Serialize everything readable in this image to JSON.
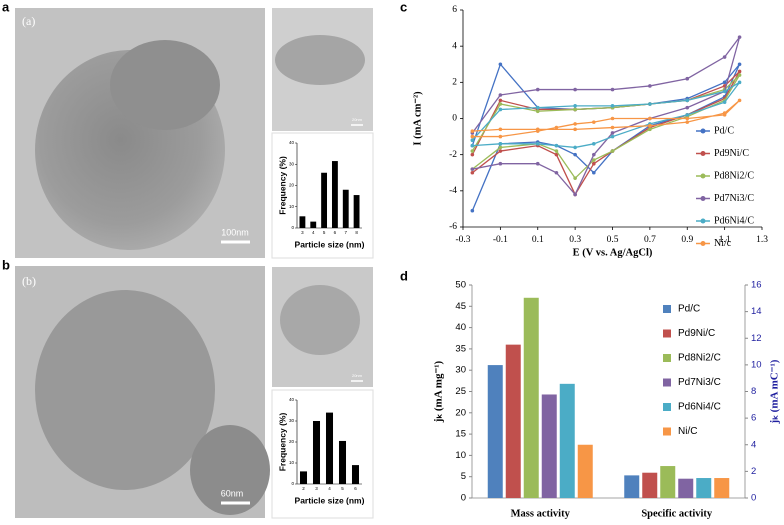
{
  "panels": [
    {
      "label": "a",
      "tag": "(a)",
      "scale_bar": "100nm",
      "inset_scale_bar": "20nm"
    },
    {
      "label": "b",
      "tag": "(b)",
      "scale_bar": "60nm",
      "inset_scale_bar": "20nm"
    }
  ],
  "chart_data": [
    {
      "type": "bar",
      "xlabel": "Particle size  (nm)",
      "ylabel": "Frequency (%)",
      "categories": [
        "3",
        "4",
        "5",
        "6",
        "7",
        "8"
      ],
      "values": [
        5.5,
        3,
        26,
        31.5,
        18,
        15.5
      ],
      "color": "#000000",
      "ylim": [
        0,
        40
      ],
      "yticks": [
        0,
        10,
        20,
        30,
        40
      ]
    },
    {
      "type": "bar",
      "xlabel": "Particle size  (nm)",
      "ylabel": "Frequency (%)",
      "categories": [
        "2",
        "3",
        "4",
        "5",
        "6"
      ],
      "values": [
        6,
        30,
        34,
        20.5,
        9
      ],
      "color": "#000000",
      "ylim": [
        0,
        40
      ],
      "yticks": [
        0,
        10,
        20,
        30,
        40
      ]
    },
    {
      "type": "line",
      "panel_label": "c",
      "xlabel": "E (V vs. Ag/AgCl)",
      "ylabel": "I (mA cm⁻²)",
      "xlim": [
        -0.3,
        1.3
      ],
      "xticks": [
        -0.3,
        -0.1,
        0.1,
        0.3,
        0.5,
        0.7,
        0.9,
        1.1,
        1.3
      ],
      "ylim": [
        -6,
        6
      ],
      "yticks": [
        -6,
        -4,
        -2,
        0,
        2,
        4,
        6
      ],
      "legend": "right",
      "series": [
        {
          "name": "Pd/C",
          "color": "#4472c4",
          "x": [
            -0.25,
            -0.1,
            0.1,
            0.3,
            0.5,
            0.7,
            0.9,
            1.1,
            1.18,
            1.1,
            0.9,
            0.7,
            0.5,
            0.4,
            0.3,
            0.2,
            0.1,
            -0.1,
            -0.25
          ],
          "values": [
            -1.5,
            3.0,
            0.6,
            0.5,
            0.6,
            0.8,
            1.1,
            2.0,
            3.0,
            1.2,
            0.2,
            -0.4,
            -1.8,
            -3.0,
            -2.0,
            -1.5,
            -1.3,
            -1.4,
            -5.1
          ]
        },
        {
          "name": "Pd9Ni/C",
          "color": "#c0504d",
          "x": [
            -0.25,
            -0.1,
            0.1,
            0.3,
            0.5,
            0.7,
            0.9,
            1.1,
            1.18,
            1.1,
            0.9,
            0.7,
            0.5,
            0.4,
            0.3,
            0.2,
            0.1,
            -0.1,
            -0.25
          ],
          "values": [
            -2.0,
            1.0,
            0.5,
            0.5,
            0.6,
            0.8,
            1.0,
            1.8,
            2.6,
            1.1,
            0.2,
            -0.5,
            -1.8,
            -2.5,
            -4.2,
            -2.0,
            -1.5,
            -1.8,
            -3.0
          ]
        },
        {
          "name": "Pd8Ni2/C",
          "color": "#9bbb59",
          "x": [
            -0.25,
            -0.1,
            0.1,
            0.3,
            0.5,
            0.7,
            0.9,
            1.1,
            1.18,
            1.1,
            0.9,
            0.7,
            0.5,
            0.4,
            0.3,
            0.2,
            0.1,
            -0.1,
            -0.25
          ],
          "values": [
            -1.8,
            0.8,
            0.4,
            0.5,
            0.6,
            0.8,
            1.0,
            1.6,
            2.4,
            1.0,
            0.1,
            -0.6,
            -1.8,
            -2.3,
            -3.3,
            -1.8,
            -1.4,
            -1.6,
            -2.8
          ]
        },
        {
          "name": "Pd7Ni3/C",
          "color": "#8064a2",
          "x": [
            -0.25,
            -0.1,
            0.1,
            0.3,
            0.5,
            0.7,
            0.9,
            1.1,
            1.18,
            1.1,
            0.9,
            0.7,
            0.5,
            0.4,
            0.3,
            0.2,
            0.1,
            -0.1,
            -0.25
          ],
          "values": [
            -0.8,
            1.3,
            1.6,
            1.6,
            1.6,
            1.8,
            2.2,
            3.4,
            4.5,
            1.5,
            0.6,
            0.0,
            -0.8,
            -2.0,
            -4.2,
            -3.0,
            -2.5,
            -2.5,
            -2.8
          ]
        },
        {
          "name": "Pd6Ni4/C",
          "color": "#4bacc6",
          "x": [
            -0.25,
            -0.1,
            0.1,
            0.3,
            0.5,
            0.7,
            0.9,
            1.1,
            1.18,
            1.1,
            0.9,
            0.7,
            0.5,
            0.4,
            0.3,
            0.2,
            0.1,
            -0.1,
            -0.25
          ],
          "values": [
            -1.2,
            0.5,
            0.6,
            0.7,
            0.7,
            0.8,
            1.0,
            1.5,
            2.0,
            0.9,
            0.2,
            -0.3,
            -1.0,
            -1.4,
            -1.6,
            -1.5,
            -1.4,
            -1.4,
            -1.5
          ]
        },
        {
          "name": "Ni/c",
          "color": "#f79646",
          "x": [
            -0.25,
            -0.1,
            0.1,
            0.3,
            0.5,
            0.7,
            0.9,
            1.1,
            1.18,
            1.1,
            0.9,
            0.7,
            0.5,
            0.4,
            0.3,
            0.2,
            0.1,
            -0.1,
            -0.25
          ],
          "values": [
            -0.7,
            -0.6,
            -0.6,
            -0.6,
            -0.5,
            -0.4,
            -0.2,
            0.3,
            1.0,
            0.2,
            0.0,
            0.0,
            0.0,
            -0.2,
            -0.3,
            -0.5,
            -0.7,
            -1.0,
            -1.0
          ]
        }
      ]
    },
    {
      "type": "grouped_bar",
      "panel_label": "d",
      "ylabel": "jₖ (mA mg⁻¹)",
      "y2label": "jₖ (mA mC⁻¹)",
      "categories": [
        "Mass activity",
        "Specific activity"
      ],
      "category_axis": [
        "y",
        "y2"
      ],
      "ylim": [
        0,
        50
      ],
      "yticks": [
        0,
        5,
        10,
        15,
        20,
        25,
        30,
        35,
        40,
        45,
        50
      ],
      "y2lim": [
        0,
        16
      ],
      "y2ticks": [
        0,
        2,
        4,
        6,
        8,
        10,
        12,
        14,
        16
      ],
      "y2color": "#1f1f9f",
      "legend": "right",
      "series": [
        {
          "name": "Pd/C",
          "color": "#4f81bd",
          "values": [
            31.2,
            1.7
          ]
        },
        {
          "name": "Pd9Ni/C",
          "color": "#c0504d",
          "values": [
            36,
            1.9
          ]
        },
        {
          "name": "Pd8Ni2/C",
          "color": "#9bbb59",
          "values": [
            47,
            2.4
          ]
        },
        {
          "name": "Pd7Ni3/C",
          "color": "#8064a2",
          "values": [
            24.3,
            1.45
          ]
        },
        {
          "name": "Pd6Ni4/C",
          "color": "#4bacc6",
          "values": [
            26.8,
            1.5
          ]
        },
        {
          "name": "Ni/C",
          "color": "#f79646",
          "values": [
            12.5,
            1.5
          ]
        }
      ]
    }
  ]
}
